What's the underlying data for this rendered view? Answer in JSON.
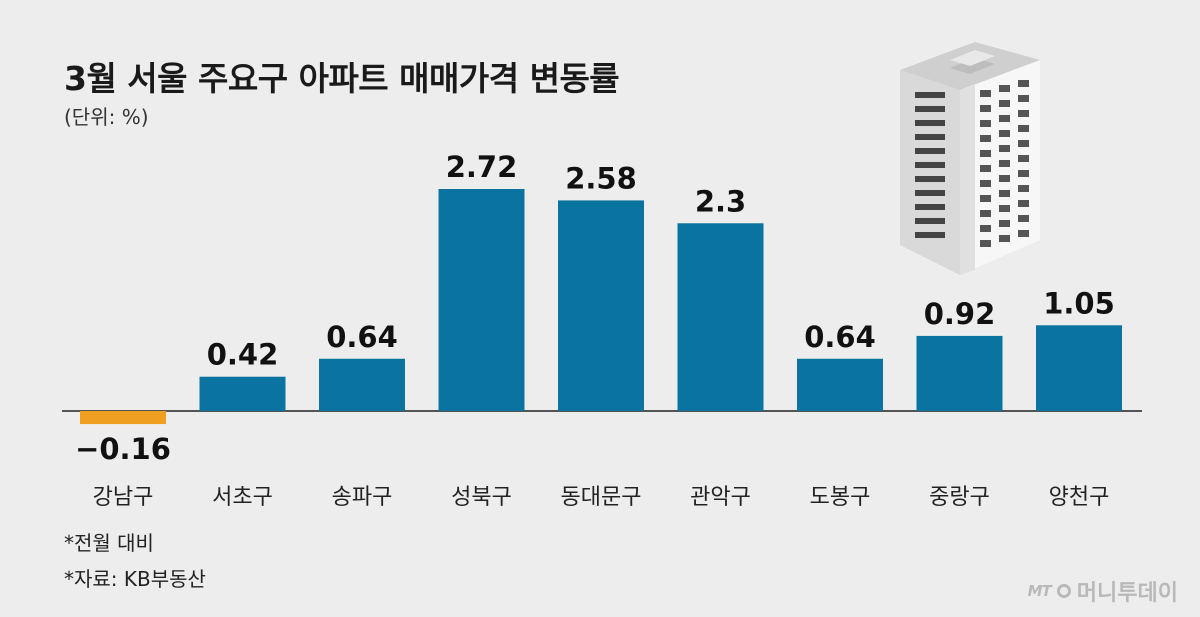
{
  "title": "3월 서울 주요구 아파트 매매가격 변동률",
  "unit_label": "(단위: %)",
  "notes": [
    "*전월 대비",
    "*자료: KB부동산"
  ],
  "watermark": {
    "logo": "MT",
    "name": "머니투데이"
  },
  "colors": {
    "positive": "#0a73a0",
    "negative": "#f0a020",
    "background": "#ededed",
    "text": "#111111"
  },
  "illustration": "apartment-building-icon",
  "chart_data": {
    "type": "bar",
    "categories": [
      "강남구",
      "서초구",
      "송파구",
      "성북구",
      "동대문구",
      "관악구",
      "도봉구",
      "중랑구",
      "양천구"
    ],
    "values": [
      -0.16,
      0.42,
      0.64,
      2.72,
      2.58,
      2.3,
      0.64,
      0.92,
      1.05
    ],
    "value_labels": [
      "−0.16",
      "0.42",
      "0.64",
      "2.72",
      "2.58",
      "2.3",
      "0.64",
      "0.92",
      "1.05"
    ],
    "ylim": [
      -0.2,
      2.72
    ],
    "grid": false,
    "legend": "none"
  }
}
